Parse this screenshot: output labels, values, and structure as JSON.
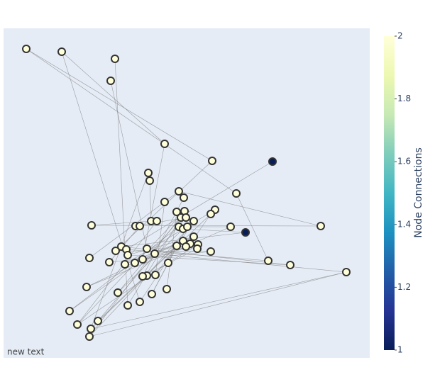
{
  "chart_data": {
    "type": "network",
    "xlim": [
      0,
      516
    ],
    "ylim": [
      0,
      465
    ],
    "nodes": {
      "x": [
        32,
        82,
        157,
        151,
        227,
        294,
        379,
        204,
        206,
        247,
        328,
        254,
        227,
        244,
        255,
        298,
        292,
        250,
        257,
        268,
        208,
        216,
        124,
        186,
        192,
        247,
        253,
        259,
        320,
        447,
        341,
        268,
        253,
        263,
        274,
        244,
        257,
        273,
        292,
        166,
        158,
        173,
        202,
        175,
        213,
        121,
        149,
        196,
        171,
        185,
        232,
        373,
        404,
        483,
        202,
        196,
        214,
        117,
        230,
        161,
        209,
        192,
        175,
        93,
        133,
        104,
        123,
        121
      ],
      "y": [
        436,
        432,
        422,
        391,
        302,
        278,
        277,
        261,
        250,
        235,
        232,
        226,
        220,
        206,
        207,
        209,
        203,
        198,
        198,
        193,
        193,
        193,
        187,
        186,
        186,
        185,
        182,
        185,
        185,
        186,
        177,
        171,
        165,
        161,
        160,
        158,
        157,
        154,
        150,
        157,
        151,
        153,
        154,
        145,
        147,
        141,
        135,
        139,
        132,
        134,
        134,
        137,
        131,
        121,
        116,
        115,
        117,
        100,
        97,
        92,
        90,
        79,
        74,
        66,
        52,
        47,
        41,
        30
      ],
      "values": [
        2,
        2,
        2,
        2,
        2,
        2,
        1,
        2,
        2,
        2,
        2,
        2,
        2,
        2,
        2,
        2,
        2,
        2,
        2,
        2,
        2,
        2,
        2,
        2,
        2,
        2,
        2,
        2,
        2,
        2,
        1,
        2,
        2,
        2,
        2,
        2,
        2,
        2,
        2,
        2,
        2,
        2,
        2,
        2,
        2,
        2,
        2,
        2,
        2,
        2,
        2,
        2,
        2,
        2,
        2,
        2,
        2,
        2,
        2,
        2,
        2,
        2,
        2,
        2,
        2,
        2,
        2,
        2
      ]
    },
    "edges": [
      [
        0,
        5
      ],
      [
        0,
        10
      ],
      [
        1,
        4
      ],
      [
        1,
        61
      ],
      [
        2,
        62
      ],
      [
        3,
        42
      ],
      [
        4,
        47
      ],
      [
        5,
        40
      ],
      [
        6,
        41
      ],
      [
        7,
        66
      ],
      [
        8,
        20
      ],
      [
        9,
        29
      ],
      [
        9,
        45
      ],
      [
        10,
        51
      ],
      [
        11,
        55
      ],
      [
        12,
        56
      ],
      [
        13,
        58
      ],
      [
        14,
        67
      ],
      [
        15,
        48
      ],
      [
        16,
        33
      ],
      [
        17,
        59
      ],
      [
        18,
        23
      ],
      [
        19,
        54
      ],
      [
        20,
        22
      ],
      [
        21,
        65
      ],
      [
        22,
        29
      ],
      [
        24,
        46
      ],
      [
        25,
        28
      ],
      [
        26,
        30
      ],
      [
        27,
        60
      ],
      [
        28,
        36
      ],
      [
        30,
        39
      ],
      [
        31,
        43
      ],
      [
        32,
        44
      ],
      [
        33,
        49
      ],
      [
        34,
        50
      ],
      [
        35,
        64
      ],
      [
        36,
        57
      ],
      [
        37,
        42
      ],
      [
        38,
        40
      ],
      [
        39,
        52
      ],
      [
        41,
        51
      ],
      [
        44,
        53
      ],
      [
        46,
        38
      ],
      [
        47,
        63
      ],
      [
        48,
        31
      ],
      [
        49,
        34
      ],
      [
        50,
        65
      ],
      [
        52,
        43
      ],
      [
        53,
        66
      ],
      [
        54,
        67
      ],
      [
        55,
        37
      ],
      [
        56,
        35
      ],
      [
        57,
        32
      ],
      [
        59,
        26
      ],
      [
        60,
        27
      ],
      [
        61,
        19
      ],
      [
        62,
        17
      ],
      [
        63,
        25
      ],
      [
        64,
        18
      ],
      [
        65,
        14
      ],
      [
        66,
        16
      ],
      [
        67,
        53
      ]
    ],
    "edge_color": "#888",
    "colorscale": [
      "#081d58",
      "#253494",
      "#225ea8",
      "#1d91c0",
      "#41b6c4",
      "#7fcdbb",
      "#c7e9b4",
      "#edf8b1",
      "#ffffd9"
    ],
    "colorbar": {
      "title": "Node Connections",
      "clim": [
        1,
        2
      ],
      "ticks": [
        1,
        1.2,
        1.4,
        1.6,
        1.8,
        2
      ]
    },
    "annotation": "new text"
  }
}
